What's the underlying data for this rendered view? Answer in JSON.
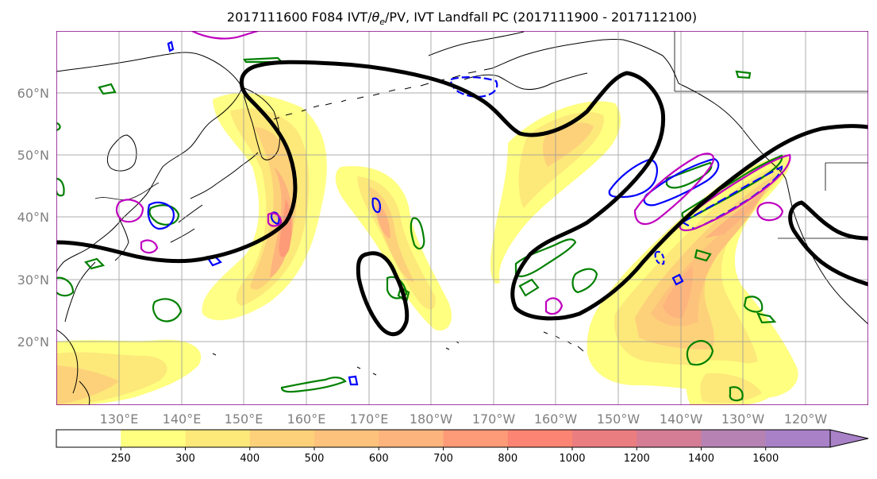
{
  "title": {
    "run": "2017111600",
    "forecast": "F084",
    "fields_prefix": "IVT/",
    "theta_symbol": "θ",
    "theta_subscript": "e",
    "fields_suffix": "/PV, IVT Landfall PC",
    "window": "(2017111900 - 2017112100)"
  },
  "map": {
    "lat_labels": [
      "60°N",
      "50°N",
      "40°N",
      "30°N",
      "20°N"
    ],
    "lon_labels": [
      "130°E",
      "140°E",
      "150°E",
      "160°E",
      "170°E",
      "180°W",
      "170°W",
      "160°W",
      "150°W",
      "140°W",
      "130°W",
      "120°W"
    ],
    "colors": {
      "thick_contour": "#000000",
      "green_contour": "#008000",
      "blue_contour": "#0000ff",
      "magenta_contour": "#bf00bf",
      "grid": "#999999",
      "coast": "#000000"
    }
  },
  "colorbar": {
    "ticks": [
      "250",
      "300",
      "400",
      "500",
      "600",
      "700",
      "800",
      "1000",
      "1200",
      "1400",
      "1600"
    ],
    "colors": [
      "#ffffff",
      "#ffff80",
      "#fde87a",
      "#fdd17a",
      "#fdc27c",
      "#fdb47d",
      "#fd9a77",
      "#fb8572",
      "#ea7d80",
      "#d47d95",
      "#b682b3",
      "#a881c6"
    ]
  }
}
